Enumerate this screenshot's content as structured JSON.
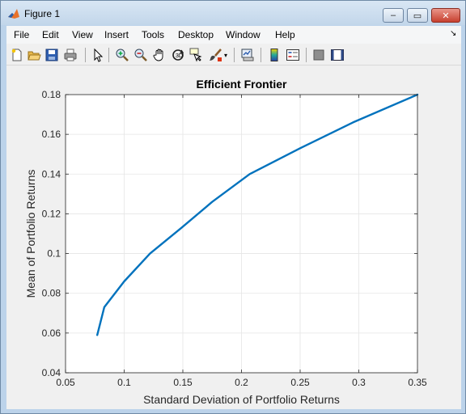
{
  "window": {
    "title": "Figure 1",
    "minimize": "‒",
    "maximize": "▭",
    "close": "✕"
  },
  "menu": [
    "File",
    "Edit",
    "View",
    "Insert",
    "Tools",
    "Desktop",
    "Window",
    "Help"
  ],
  "toolbar_icons": [
    "new-figure-icon",
    "open-file-icon",
    "save-icon",
    "print-icon",
    "edit-plot-icon",
    "zoom-in-icon",
    "zoom-out-icon",
    "pan-icon",
    "rotate-3d-icon",
    "data-cursor-icon",
    "brush-icon",
    "link-plot-icon",
    "colorbar-icon",
    "legend-icon",
    "hide-plot-tools-icon",
    "show-plot-tools-icon"
  ],
  "colors": {
    "line": "#0072bd",
    "axes_bg": "#ffffff",
    "figure_bg": "#f0f0f0",
    "grid": "#e5e5e5"
  },
  "chart_data": {
    "type": "line",
    "title": "Efficient Frontier",
    "xlabel": "Standard Deviation of Portfolio Returns",
    "ylabel": "Mean of Portfolio Returns",
    "xlim": [
      0.05,
      0.35
    ],
    "ylim": [
      0.04,
      0.18
    ],
    "xticks": [
      "0.05",
      "0.1",
      "0.15",
      "0.2",
      "0.25",
      "0.3",
      "0.35"
    ],
    "yticks": [
      "0.04",
      "0.06",
      "0.08",
      "0.1",
      "0.12",
      "0.14",
      "0.16",
      "0.18"
    ],
    "grid": true,
    "series": [
      {
        "x": [
          0.077,
          0.083,
          0.1,
          0.122,
          0.149,
          0.175,
          0.207,
          0.25,
          0.295,
          0.35
        ],
        "y": [
          0.059,
          0.073,
          0.086,
          0.1,
          0.113,
          0.126,
          0.14,
          0.153,
          0.166,
          0.18
        ]
      }
    ]
  }
}
